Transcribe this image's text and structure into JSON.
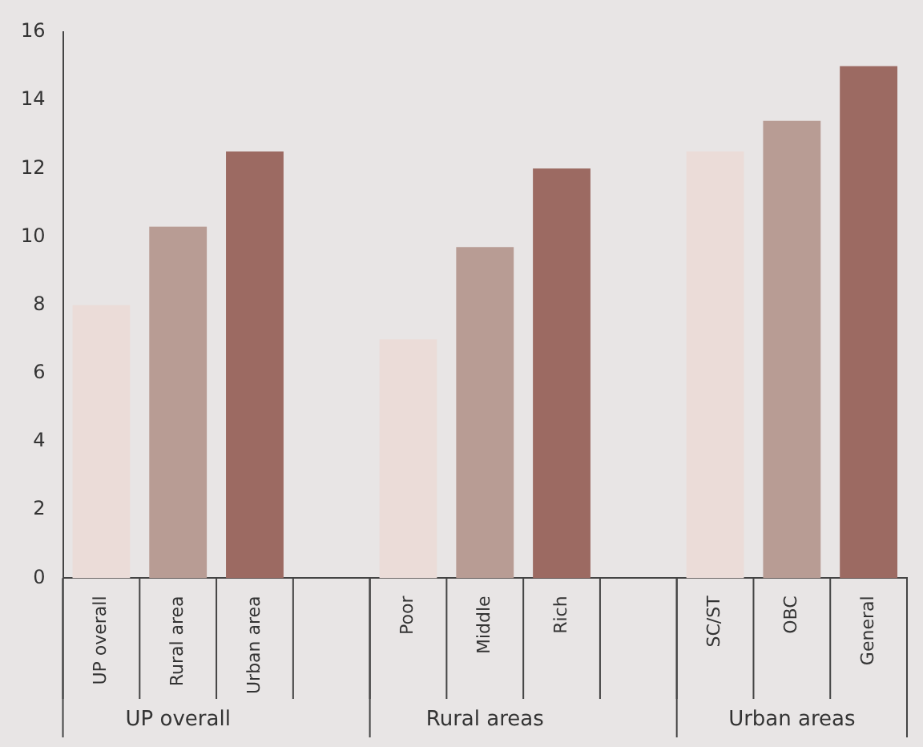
{
  "chart_data": {
    "type": "bar",
    "categories": [
      "UP overall",
      "Rural area",
      "Urban area",
      null,
      "Poor",
      "Middle",
      "Rich",
      null,
      "SC/ST",
      "OBC",
      "General"
    ],
    "values": [
      8.0,
      10.3,
      12.5,
      null,
      7.0,
      9.7,
      12.0,
      null,
      12.5,
      13.4,
      15.0
    ],
    "colors": [
      "#ebdcd8",
      "#b89c94",
      "#9c6a62",
      "#b89c94",
      "#ebdcd8",
      "#b89c94",
      "#9c6a62",
      "#b89c94",
      "#ebdcd8",
      "#b89c94",
      "#9c6a62"
    ],
    "ylim": [
      0,
      16
    ],
    "yticks": [
      0,
      2,
      4,
      6,
      8,
      10,
      12,
      14,
      16
    ],
    "annotations": [
      "UP overall",
      "Rural areas",
      "Urban areas"
    ]
  }
}
